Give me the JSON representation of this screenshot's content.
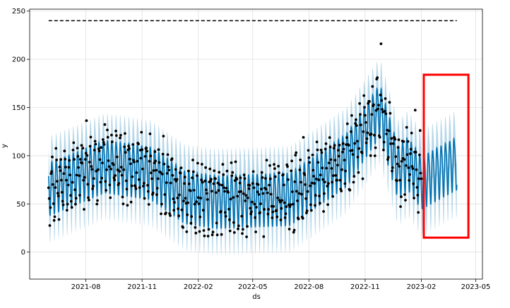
{
  "chart_data": {
    "type": "line",
    "description_free": true,
    "xlabel": "ds",
    "ylabel": "y",
    "x_range": [
      "2021-05-01",
      "2023-05-12"
    ],
    "ylim": [
      -28,
      252
    ],
    "x_ticks": [
      {
        "date": "2021-08-01",
        "label": "2021-08"
      },
      {
        "date": "2021-11-01",
        "label": "2021-11"
      },
      {
        "date": "2022-02-01",
        "label": "2022-02"
      },
      {
        "date": "2022-05-01",
        "label": "2022-05"
      },
      {
        "date": "2022-08-01",
        "label": "2022-08"
      },
      {
        "date": "2022-11-01",
        "label": "2022-11"
      },
      {
        "date": "2023-02-01",
        "label": "2023-02"
      },
      {
        "date": "2023-05-01",
        "label": "2023-05"
      }
    ],
    "y_ticks": [
      0,
      50,
      100,
      150,
      200,
      250
    ],
    "grid": true,
    "cap": {
      "value": 240,
      "start": "2021-06-01",
      "end": "2023-03-31",
      "style": "dashed",
      "color": "#000000"
    },
    "forecast_color": "#0072B2",
    "interval_color": "#9ecae1",
    "observed_color": "#000000",
    "observed_range": [
      "2021-06-01",
      "2023-02-01"
    ],
    "forecast_range": [
      "2021-06-01",
      "2023-03-31"
    ],
    "trend_knots": [
      {
        "date": "2021-06-01",
        "value": 68
      },
      {
        "date": "2021-09-01",
        "value": 92
      },
      {
        "date": "2021-11-15",
        "value": 85
      },
      {
        "date": "2022-01-10",
        "value": 60
      },
      {
        "date": "2022-03-01",
        "value": 55
      },
      {
        "date": "2022-07-01",
        "value": 58
      },
      {
        "date": "2022-10-01",
        "value": 98
      },
      {
        "date": "2022-11-25",
        "value": 150
      },
      {
        "date": "2022-12-25",
        "value": 85
      },
      {
        "date": "2023-01-10",
        "value": 95
      },
      {
        "date": "2023-02-01",
        "value": 75
      },
      {
        "date": "2023-03-31",
        "value": 95
      }
    ],
    "weekly_amplitude": 35,
    "interval_halfwidth": 28,
    "highlight_box": {
      "start": "2023-02-05",
      "end": "2023-04-19",
      "ymin": 15,
      "ymax": 184,
      "color": "#ff0000"
    }
  }
}
